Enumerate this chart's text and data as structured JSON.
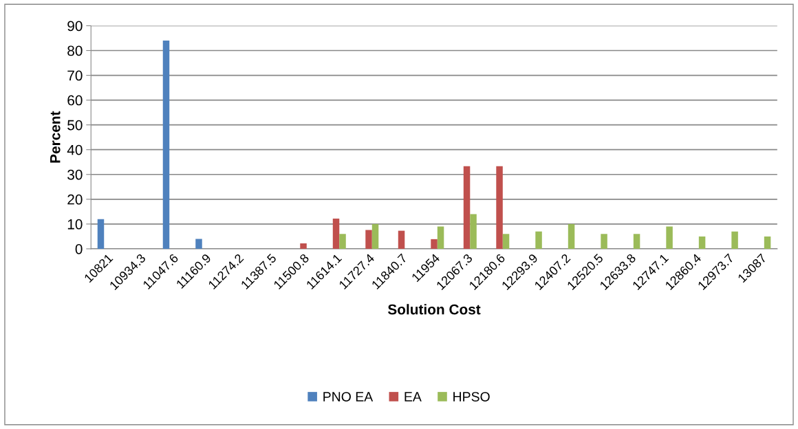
{
  "chart_data": {
    "type": "bar",
    "xlabel": "Solution Cost",
    "ylabel": "Percent",
    "categories": [
      "10821",
      "10934.3",
      "11047.6",
      "11160.9",
      "11274.2",
      "11387.5",
      "11500.8",
      "11614.1",
      "11727.4",
      "11840.7",
      "11954",
      "12067.3",
      "12180.6",
      "12293.9",
      "12407.2",
      "12520.5",
      "12633.8",
      "12747.1",
      "12860.4",
      "12973.7",
      "13087"
    ],
    "series": [
      {
        "name": "PNO EA",
        "color": "#4f81bd",
        "values": [
          12,
          null,
          84,
          4,
          null,
          null,
          null,
          null,
          null,
          null,
          null,
          null,
          null,
          null,
          null,
          null,
          null,
          null,
          null,
          null,
          null
        ]
      },
      {
        "name": "EA",
        "color": "#c0504d",
        "values": [
          null,
          null,
          null,
          null,
          null,
          null,
          2.2,
          12.2,
          7.6,
          7.3,
          3.9,
          33.3,
          33.3,
          null,
          null,
          null,
          null,
          null,
          null,
          null,
          null
        ]
      },
      {
        "name": "HPSO",
        "color": "#9bbb59",
        "values": [
          null,
          null,
          null,
          null,
          null,
          null,
          null,
          6,
          10,
          null,
          9,
          14,
          6,
          7,
          10,
          6,
          6,
          9,
          5,
          7,
          5
        ]
      }
    ],
    "ylim": [
      0,
      90
    ],
    "yticks": [
      0,
      10,
      20,
      30,
      40,
      50,
      60,
      70,
      80,
      90
    ],
    "grid": "y",
    "legend": "bottom"
  }
}
